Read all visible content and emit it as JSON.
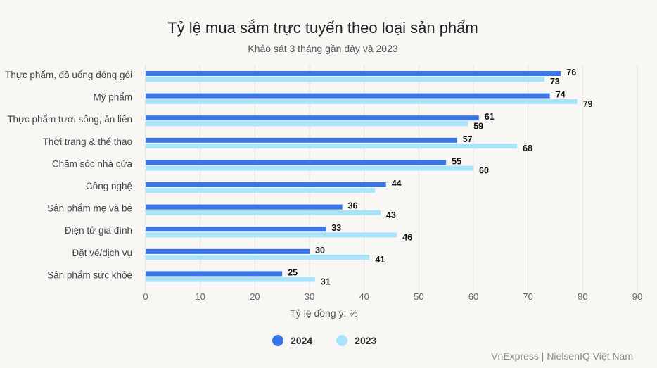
{
  "chart_data": {
    "type": "bar",
    "orientation": "horizontal",
    "title": "Tỷ lệ mua sắm trực tuyến theo loại sản phẩm",
    "subtitle": "Khảo sát 3 tháng gần đây và 2023",
    "xlabel": "Tỷ lệ đồng ý: %",
    "xlim": [
      0,
      90
    ],
    "xticks": [
      0,
      10,
      20,
      30,
      40,
      50,
      60,
      70,
      80,
      90
    ],
    "grid": true,
    "legend_position": "bottom",
    "categories": [
      "Thực phẩm, đồ uống đóng gói",
      "Mỹ phẩm",
      "Thực phẩm tươi sống, ăn liền",
      "Thời trang & thể thao",
      "Chăm sóc nhà cửa",
      "Công nghệ",
      "Sản phẩm mẹ và bé",
      "Điện tử gia đình",
      "Đặt vé/dịch vụ",
      "Sản phẩm sức khỏe"
    ],
    "series": [
      {
        "name": "2024",
        "color": "#3a75e6",
        "values": [
          76,
          74,
          61,
          57,
          55,
          44,
          36,
          33,
          30,
          25
        ],
        "labels": [
          "76",
          "74",
          "61",
          "57",
          "55",
          "44",
          "36",
          "33",
          "30",
          "25"
        ]
      },
      {
        "name": "2023",
        "color": "#a8e4fb",
        "values": [
          73,
          79,
          59,
          68,
          60,
          42,
          43,
          46,
          41,
          31
        ],
        "labels": [
          "73",
          "79",
          "59",
          "68",
          "60",
          "",
          "43",
          "46",
          "41",
          "31"
        ]
      }
    ]
  },
  "credit": "VnExpress | NielsenIQ Việt Nam"
}
